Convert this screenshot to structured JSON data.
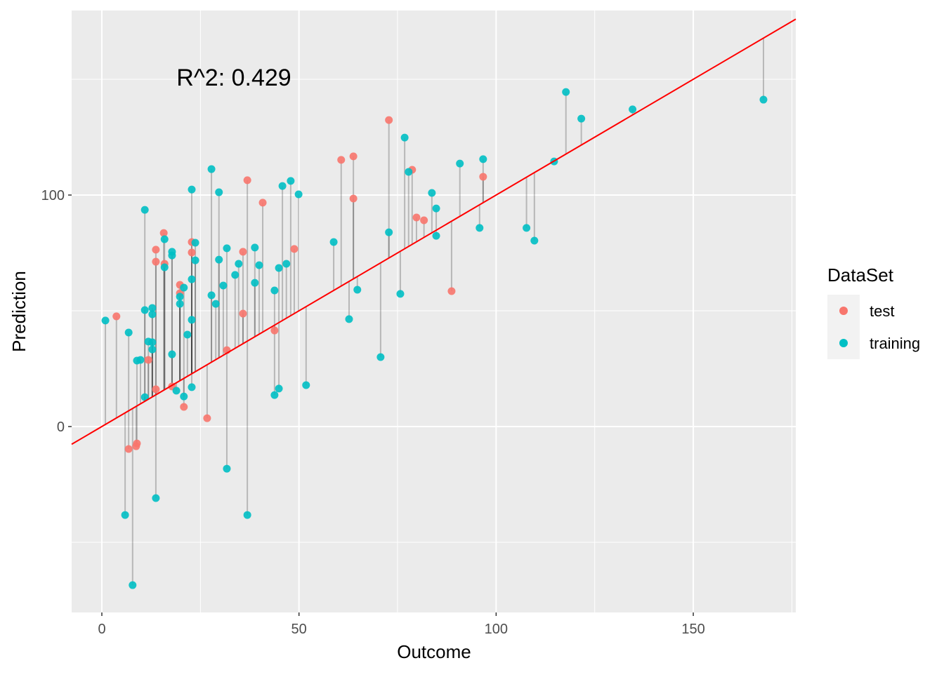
{
  "chart_data": {
    "type": "scatter",
    "xlabel": "Outcome",
    "ylabel": "Prediction",
    "xlim": [
      -7.66,
      176
    ],
    "ylim": [
      -80.3,
      179.7
    ],
    "x_ticks": [
      0,
      50,
      100,
      150
    ],
    "y_ticks": [
      0,
      100
    ],
    "grid": true,
    "annotation": "R^2: 0.429",
    "reference_line": {
      "slope": 1,
      "intercept": 0,
      "color": "#FF0000"
    },
    "legend": {
      "title": "DataSet",
      "placement": "right"
    },
    "series": [
      {
        "name": "test",
        "color": "#F8766D",
        "points": [
          [
            3.7,
            47.6
          ],
          [
            6.8,
            -9.7
          ],
          [
            8.7,
            -8.5
          ],
          [
            8.9,
            -7.3
          ],
          [
            11.8,
            28.8
          ],
          [
            13.7,
            76.4
          ],
          [
            13.7,
            71.2
          ],
          [
            13.7,
            16.1
          ],
          [
            15.7,
            83.6
          ],
          [
            15.9,
            70.3
          ],
          [
            17.8,
            17.3
          ],
          [
            19.8,
            61.2
          ],
          [
            19.8,
            57.6
          ],
          [
            20.8,
            8.5
          ],
          [
            22.8,
            79.7
          ],
          [
            22.8,
            75.2
          ],
          [
            26.7,
            3.6
          ],
          [
            31.7,
            33.0
          ],
          [
            35.8,
            75.5
          ],
          [
            35.8,
            48.8
          ],
          [
            36.9,
            106.4
          ],
          [
            40.8,
            96.7
          ],
          [
            43.8,
            41.5
          ],
          [
            48.8,
            76.7
          ],
          [
            60.7,
            115.2
          ],
          [
            63.8,
            116.7
          ],
          [
            63.8,
            98.5
          ],
          [
            72.8,
            132.4
          ],
          [
            78.7,
            110.9
          ],
          [
            79.8,
            90.3
          ],
          [
            81.7,
            89.1
          ],
          [
            88.7,
            58.5
          ],
          [
            96.7,
            107.9
          ]
        ]
      },
      {
        "name": "training",
        "color": "#00BFC4",
        "points": [
          [
            0.9,
            45.8
          ],
          [
            5.9,
            -38.2
          ],
          [
            6.8,
            40.6
          ],
          [
            7.8,
            -68.5
          ],
          [
            8.9,
            28.5
          ],
          [
            9.8,
            28.8
          ],
          [
            10.9,
            93.6
          ],
          [
            10.9,
            50.3
          ],
          [
            10.9,
            12.7
          ],
          [
            11.8,
            36.7
          ],
          [
            12.8,
            51.2
          ],
          [
            12.8,
            48.5
          ],
          [
            12.8,
            36.4
          ],
          [
            12.8,
            33.3
          ],
          [
            13.7,
            -30.9
          ],
          [
            15.9,
            80.9
          ],
          [
            15.9,
            68.8
          ],
          [
            17.8,
            75.5
          ],
          [
            17.8,
            73.9
          ],
          [
            17.8,
            31.2
          ],
          [
            18.9,
            15.5
          ],
          [
            19.8,
            56.1
          ],
          [
            19.8,
            53.0
          ],
          [
            20.8,
            60.0
          ],
          [
            20.8,
            13.0
          ],
          [
            21.7,
            39.7
          ],
          [
            22.8,
            102.4
          ],
          [
            22.8,
            63.6
          ],
          [
            22.8,
            46.1
          ],
          [
            22.8,
            17.0
          ],
          [
            23.7,
            79.4
          ],
          [
            23.7,
            71.8
          ],
          [
            27.8,
            111.2
          ],
          [
            27.8,
            56.7
          ],
          [
            28.9,
            53.0
          ],
          [
            29.7,
            101.2
          ],
          [
            29.7,
            72.1
          ],
          [
            30.8,
            60.9
          ],
          [
            31.7,
            77.0
          ],
          [
            31.7,
            -18.2
          ],
          [
            33.8,
            65.5
          ],
          [
            34.7,
            70.3
          ],
          [
            36.9,
            -38.2
          ],
          [
            38.8,
            77.3
          ],
          [
            38.8,
            62.1
          ],
          [
            39.9,
            69.7
          ],
          [
            43.8,
            58.8
          ],
          [
            43.8,
            13.6
          ],
          [
            44.9,
            68.5
          ],
          [
            44.9,
            16.4
          ],
          [
            45.8,
            103.9
          ],
          [
            46.8,
            70.3
          ],
          [
            47.9,
            106.1
          ],
          [
            49.9,
            100.3
          ],
          [
            51.8,
            17.9
          ],
          [
            58.8,
            79.7
          ],
          [
            62.7,
            46.4
          ],
          [
            64.8,
            59.1
          ],
          [
            70.7,
            30.0
          ],
          [
            72.8,
            83.9
          ],
          [
            75.7,
            57.3
          ],
          [
            76.8,
            124.8
          ],
          [
            77.8,
            110.0
          ],
          [
            83.7,
            100.9
          ],
          [
            84.8,
            94.2
          ],
          [
            84.8,
            82.4
          ],
          [
            90.8,
            113.6
          ],
          [
            95.8,
            85.8
          ],
          [
            96.7,
            115.5
          ],
          [
            107.7,
            85.8
          ],
          [
            109.7,
            80.3
          ],
          [
            114.7,
            114.5
          ],
          [
            117.7,
            144.5
          ],
          [
            121.6,
            133.0
          ],
          [
            134.6,
            137.0
          ],
          [
            167.8,
            141.2
          ]
        ]
      }
    ]
  }
}
